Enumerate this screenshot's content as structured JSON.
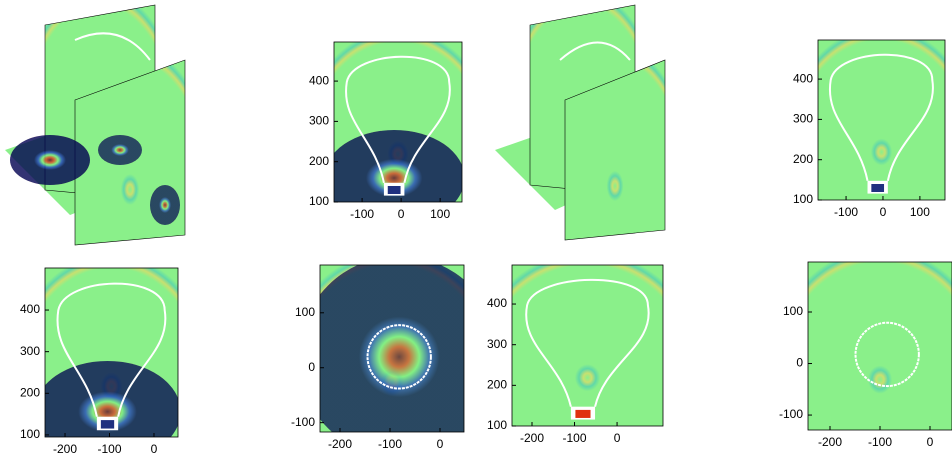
{
  "panels": [
    {
      "xlim": [
        -172,
        156
      ],
      "ylim": [
        100,
        497
      ],
      "xticks": [
        -100,
        0,
        100
      ],
      "yticks": [
        100,
        200,
        300,
        400
      ]
    },
    {
      "xlim": [
        -176,
        168
      ],
      "ylim": [
        100,
        497
      ],
      "xticks": [
        -100,
        0,
        100
      ],
      "yticks": [
        100,
        200,
        300,
        400
      ]
    },
    {
      "xlim": [
        -245,
        54
      ],
      "ylim": [
        95,
        501
      ],
      "xticks": [
        -200,
        -100,
        0
      ],
      "yticks": [
        100,
        200,
        300,
        400
      ]
    },
    {
      "xlim": [
        -240,
        48
      ],
      "ylim": [
        -117,
        187
      ],
      "xticks": [
        -200,
        -100,
        0
      ],
      "yticks": [
        -100,
        0,
        100
      ]
    },
    {
      "xlim": [
        -247,
        108
      ],
      "ylim": [
        100,
        496
      ],
      "xticks": [
        -200,
        -100,
        0
      ],
      "yticks": [
        100,
        200,
        300,
        400
      ]
    },
    {
      "xlim": [
        -244,
        44
      ],
      "ylim": [
        -129,
        197
      ],
      "xticks": [
        -200,
        -100,
        0
      ],
      "yticks": [
        -100,
        0,
        100
      ]
    }
  ]
}
